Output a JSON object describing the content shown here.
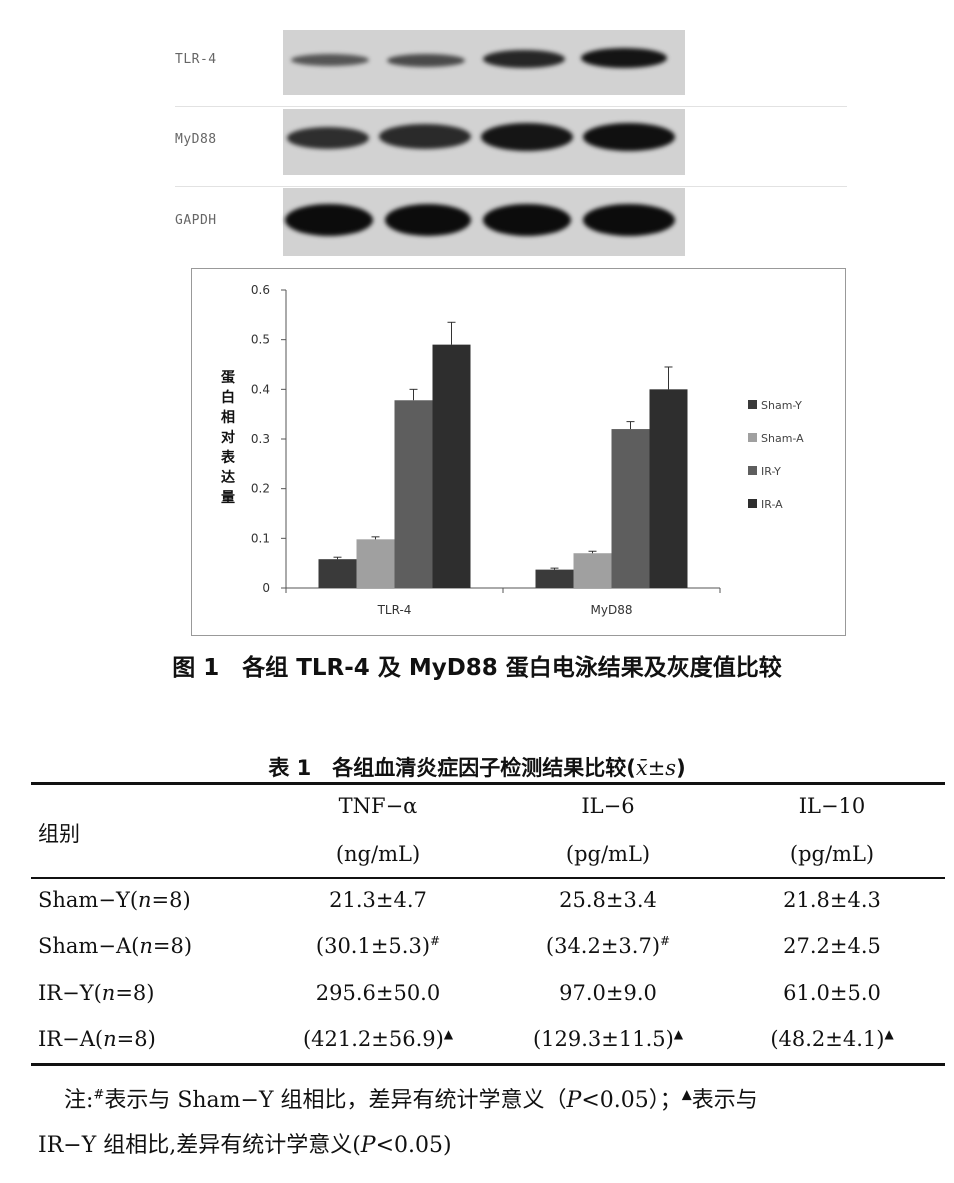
{
  "blot": {
    "labels": [
      "TLR-4",
      "MyD88",
      "GAPDH"
    ]
  },
  "chart_data": {
    "type": "bar",
    "categories": [
      "TLR-4",
      "MyD88"
    ],
    "series": [
      {
        "name": "Sham-Y",
        "values": [
          0.058,
          0.037
        ],
        "errors": [
          0.004,
          0.003
        ],
        "color": "#3a3a3a"
      },
      {
        "name": "Sham-A",
        "values": [
          0.098,
          0.07
        ],
        "errors": [
          0.005,
          0.004
        ],
        "color": "#a0a0a0"
      },
      {
        "name": "IR-Y",
        "values": [
          0.378,
          0.32
        ],
        "errors": [
          0.022,
          0.015
        ],
        "color": "#5e5e5e"
      },
      {
        "name": "IR-A",
        "values": [
          0.49,
          0.4
        ],
        "errors": [
          0.045,
          0.045
        ],
        "color": "#2e2e2e"
      }
    ],
    "yticks": [
      "0",
      "0.1",
      "0.2",
      "0.3",
      "0.4",
      "0.5",
      "0.6"
    ],
    "ylim": [
      0,
      0.6
    ],
    "ylabel": "蛋白相对表达量",
    "legend_position": "right"
  },
  "figure_caption": "图 1　各组 TLR-4 及 MyD88 蛋白电泳结果及灰度值比较",
  "table": {
    "title_prefix": "表 1　各组血清炎症因子检测结果比较(",
    "title_xbar": "x̄",
    "title_pm": "±",
    "title_s": "s",
    "title_suffix": ")",
    "group_header": "组别",
    "columns": [
      {
        "name": "TNF−α",
        "unit": "(ng/mL)"
      },
      {
        "name": "IL−6",
        "unit": "(pg/mL)"
      },
      {
        "name": "IL−10",
        "unit": "(pg/mL)"
      }
    ],
    "rows": [
      {
        "group": "Sham−Y",
        "n": "8",
        "values": [
          "21.3±4.7",
          "25.8±3.4",
          "21.8±4.3"
        ],
        "marks": [
          "",
          "",
          ""
        ]
      },
      {
        "group": "Sham−A",
        "n": "8",
        "values": [
          "(30.1±5.3)",
          "(34.2±3.7)",
          "27.2±4.5"
        ],
        "marks": [
          "#",
          "#",
          ""
        ]
      },
      {
        "group": "IR−Y",
        "n": "8",
        "values": [
          "295.6±50.0",
          "97.0±9.0",
          "61.0±5.0"
        ],
        "marks": [
          "",
          "",
          ""
        ]
      },
      {
        "group": "IR−A",
        "n": "8",
        "values": [
          "(421.2±56.9)",
          "(129.3±11.5)",
          "(48.2±4.1)"
        ],
        "marks": [
          "▲",
          "▲",
          "▲"
        ]
      }
    ]
  },
  "note": {
    "line1_a": "注:",
    "line1_hash": "#",
    "line1_b": "表示与 Sham−Y 组相比，差异有统计学意义（",
    "line1_p": "P",
    "line1_c": "<0.05）；",
    "line1_tri": "▲",
    "line1_d": "表示与",
    "line2_a": "IR−Y 组相比,差异有统计学意义(",
    "line2_p": "P",
    "line2_c": "<0.05)"
  }
}
